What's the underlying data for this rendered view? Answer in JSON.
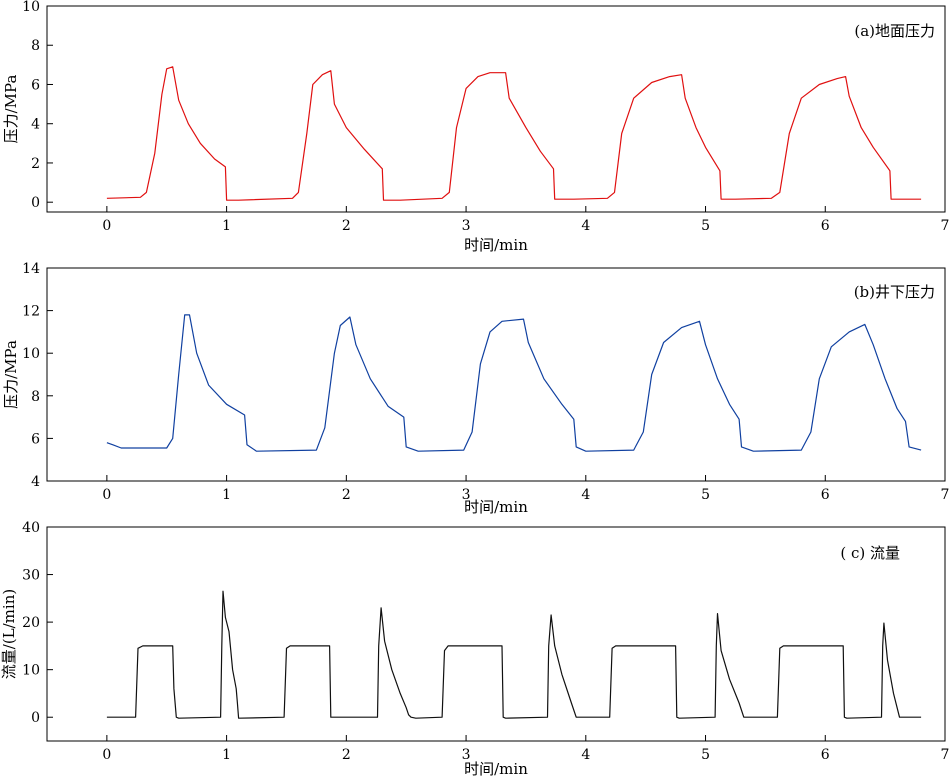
{
  "chart_data": [
    {
      "type": "line",
      "title": "(a)地面压力",
      "xlabel": "时间/min",
      "ylabel": "压力/MPa",
      "xlim": [
        -0.5,
        7
      ],
      "ylim": [
        -0.5,
        10
      ],
      "xticks": [
        0,
        1,
        2,
        3,
        4,
        5,
        6,
        7
      ],
      "yticks": [
        0,
        2,
        4,
        6,
        8,
        10
      ],
      "grid": false,
      "color": "#e01010",
      "series": [
        {
          "x": [
            0,
            0.28,
            0.33,
            0.4,
            0.46,
            0.5,
            0.55,
            0.6,
            0.68,
            0.78,
            0.9,
            0.99,
            1.0,
            1.1,
            1.55,
            1.6,
            1.67,
            1.72,
            1.8,
            1.87,
            1.9,
            2.0,
            2.15,
            2.3,
            2.31,
            2.45,
            2.8,
            2.86,
            2.92,
            3.0,
            3.1,
            3.2,
            3.33,
            3.36,
            3.5,
            3.62,
            3.73,
            3.74,
            3.9,
            4.18,
            4.24,
            4.3,
            4.4,
            4.55,
            4.7,
            4.8,
            4.83,
            4.92,
            5.0,
            5.12,
            5.13,
            5.25,
            5.55,
            5.62,
            5.7,
            5.8,
            5.95,
            6.1,
            6.17,
            6.2,
            6.3,
            6.4,
            6.54,
            6.55,
            6.68,
            6.8
          ],
          "y": [
            0.2,
            0.25,
            0.5,
            2.5,
            5.5,
            6.8,
            6.9,
            5.2,
            4.0,
            3.0,
            2.2,
            1.8,
            0.1,
            0.1,
            0.2,
            0.5,
            3.5,
            6.0,
            6.5,
            6.7,
            5.0,
            3.8,
            2.7,
            1.7,
            0.1,
            0.1,
            0.2,
            0.5,
            3.8,
            5.8,
            6.4,
            6.6,
            6.6,
            5.3,
            3.8,
            2.6,
            1.7,
            0.15,
            0.15,
            0.2,
            0.5,
            3.5,
            5.3,
            6.1,
            6.4,
            6.5,
            5.3,
            3.8,
            2.8,
            1.6,
            0.15,
            0.15,
            0.2,
            0.5,
            3.5,
            5.3,
            6.0,
            6.3,
            6.4,
            5.4,
            3.8,
            2.8,
            1.6,
            0.15,
            0.15,
            0.15
          ]
        }
      ]
    },
    {
      "type": "line",
      "title": "(b)井下压力",
      "xlabel": "时间/min",
      "ylabel": "压力/MPa",
      "xlim": [
        -0.5,
        7
      ],
      "ylim": [
        4,
        14
      ],
      "xticks": [
        0,
        1,
        2,
        3,
        4,
        5,
        6,
        7
      ],
      "yticks": [
        4,
        6,
        8,
        10,
        12,
        14
      ],
      "grid": false,
      "color": "#1040a0",
      "series": [
        {
          "x": [
            0,
            0.05,
            0.12,
            0.5,
            0.55,
            0.6,
            0.65,
            0.69,
            0.75,
            0.85,
            1.0,
            1.15,
            1.17,
            1.25,
            1.75,
            1.82,
            1.9,
            1.95,
            2.03,
            2.08,
            2.2,
            2.35,
            2.48,
            2.5,
            2.6,
            2.98,
            3.05,
            3.12,
            3.2,
            3.3,
            3.48,
            3.52,
            3.65,
            3.8,
            3.9,
            3.92,
            4.0,
            4.4,
            4.48,
            4.55,
            4.65,
            4.8,
            4.95,
            5.0,
            5.1,
            5.2,
            5.28,
            5.3,
            5.4,
            5.8,
            5.88,
            5.95,
            6.05,
            6.2,
            6.33,
            6.4,
            6.5,
            6.6,
            6.67,
            6.7,
            6.8
          ],
          "y": [
            5.8,
            5.7,
            5.55,
            5.55,
            6.0,
            9.0,
            11.8,
            11.8,
            10.0,
            8.5,
            7.6,
            7.1,
            5.7,
            5.4,
            5.45,
            6.5,
            10.0,
            11.3,
            11.7,
            10.4,
            8.8,
            7.5,
            7.0,
            5.6,
            5.4,
            5.45,
            6.3,
            9.5,
            11.0,
            11.5,
            11.6,
            10.5,
            8.8,
            7.6,
            6.9,
            5.6,
            5.4,
            5.45,
            6.3,
            9.0,
            10.5,
            11.2,
            11.5,
            10.4,
            8.8,
            7.6,
            6.9,
            5.6,
            5.4,
            5.45,
            6.3,
            8.8,
            10.3,
            11.0,
            11.35,
            10.4,
            8.8,
            7.4,
            6.8,
            5.6,
            5.45
          ]
        }
      ]
    },
    {
      "type": "line",
      "title": "( c) 流量",
      "xlabel": "时间/min",
      "ylabel": "流量/(L/min)",
      "xlim": [
        -0.5,
        7
      ],
      "ylim": [
        -5,
        40
      ],
      "xticks": [
        0,
        1,
        2,
        3,
        4,
        5,
        6,
        7
      ],
      "yticks": [
        0,
        10,
        20,
        30,
        40
      ],
      "grid": false,
      "color": "#101010",
      "series": [
        {
          "x": [
            0,
            0.24,
            0.26,
            0.3,
            0.55,
            0.56,
            0.58,
            0.6,
            0.95,
            0.96,
            0.97,
            0.99,
            1.02,
            1.05,
            1.08,
            1.09,
            1.1,
            1.48,
            1.5,
            1.53,
            1.86,
            1.87,
            2.26,
            2.27,
            2.29,
            2.32,
            2.38,
            2.45,
            2.5,
            2.52,
            2.54,
            2.58,
            2.8,
            2.82,
            2.85,
            3.3,
            3.31,
            3.33,
            3.68,
            3.69,
            3.71,
            3.74,
            3.8,
            3.88,
            3.92,
            4.0,
            4.2,
            4.22,
            4.25,
            4.75,
            4.76,
            4.78,
            5.08,
            5.09,
            5.1,
            5.13,
            5.2,
            5.28,
            5.32,
            5.6,
            5.62,
            5.65,
            6.15,
            6.16,
            6.18,
            6.47,
            6.48,
            6.49,
            6.52,
            6.57,
            6.62,
            6.8
          ],
          "y": [
            0,
            0,
            14.5,
            15,
            15,
            6,
            0,
            -0.2,
            0,
            15,
            26.5,
            21,
            18,
            10,
            6,
            3,
            -0.2,
            0,
            14.5,
            15,
            15,
            0,
            0,
            15,
            23,
            16,
            10,
            5,
            2,
            0.5,
            0,
            -0.2,
            0,
            14,
            15,
            15,
            0,
            -0.2,
            0,
            15,
            21.5,
            15,
            9,
            3,
            0,
            0,
            0,
            14.5,
            15,
            15,
            0,
            -0.2,
            0,
            15,
            21.8,
            14,
            8,
            3,
            0,
            0,
            14.5,
            15,
            15,
            0,
            -0.2,
            0,
            15,
            19.8,
            12,
            5,
            0,
            0
          ]
        }
      ]
    }
  ]
}
